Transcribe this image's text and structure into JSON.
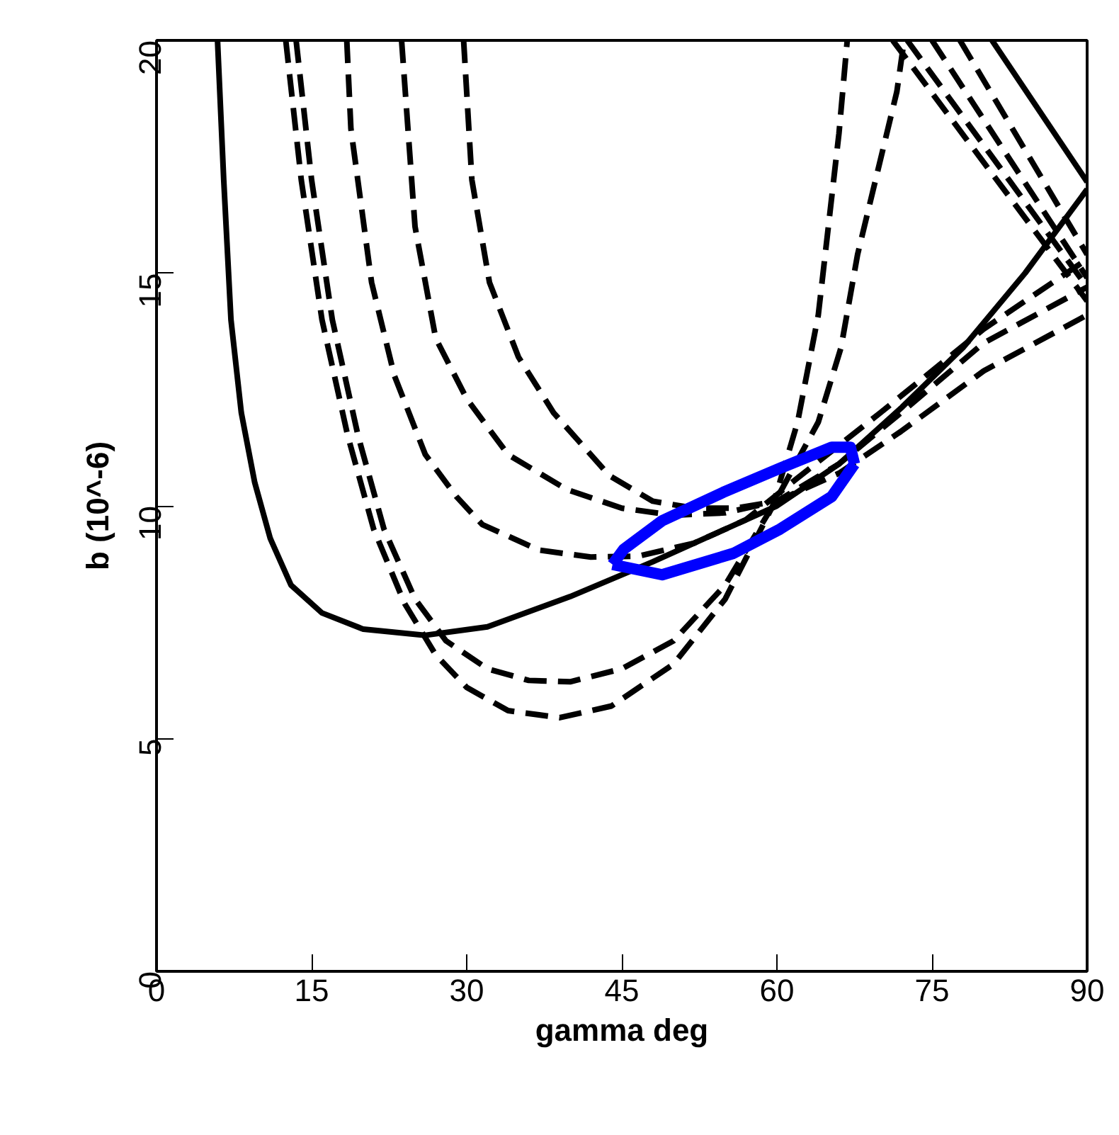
{
  "chart_data": {
    "type": "line",
    "xlabel": "gamma deg",
    "ylabel": "b (10^-6)",
    "xlim": [
      0,
      90
    ],
    "ylim": [
      0,
      20
    ],
    "xticks": [
      0,
      15,
      30,
      45,
      60,
      75,
      90
    ],
    "yticks": [
      0,
      5,
      10,
      15,
      20
    ],
    "grid": false,
    "marker": "none",
    "series": [
      {
        "color": "#000000",
        "line_style": "solid",
        "x": [
          5.9,
          6.5,
          7.2,
          8.2,
          9.5,
          11,
          13,
          16,
          20,
          26,
          32,
          40,
          48,
          55,
          60,
          66,
          72,
          78,
          84,
          90
        ],
        "values": [
          20,
          17,
          14,
          12,
          10.5,
          9.3,
          8.3,
          7.7,
          7.35,
          7.22,
          7.4,
          8.05,
          8.8,
          9.5,
          10,
          10.9,
          12.1,
          13.4,
          15,
          16.8
        ]
      },
      {
        "color": "#000000",
        "line_style": "dashed",
        "x": [
          12.5,
          14,
          16,
          18.5,
          21,
          24,
          27,
          30,
          34,
          39,
          44,
          50,
          55,
          59.6,
          62,
          64,
          66,
          66.8
        ],
        "values": [
          20,
          17,
          14,
          11.5,
          9.5,
          7.9,
          6.8,
          6.1,
          5.6,
          5.45,
          5.7,
          6.6,
          8,
          10,
          11.8,
          14.1,
          18,
          20
        ]
      },
      {
        "color": "#000000",
        "line_style": "dashed",
        "x": [
          13.5,
          15,
          17,
          19.5,
          22,
          25,
          28,
          32,
          36,
          40,
          45,
          50,
          55,
          59.6,
          64,
          66.2,
          67.8,
          71.6,
          72.3
        ],
        "values": [
          20,
          17,
          14,
          11.5,
          9.5,
          8,
          7.1,
          6.5,
          6.25,
          6.22,
          6.5,
          7.1,
          8.3,
          10,
          11.8,
          13.4,
          15.4,
          18.9,
          20
        ]
      },
      {
        "color": "#000000",
        "line_style": "dashed",
        "x": [
          18.4,
          18.8,
          20.8,
          23,
          26,
          29,
          31.5,
          37,
          42,
          46.6,
          52,
          57,
          62,
          70,
          80,
          90
        ],
        "values": [
          20,
          18.1,
          14.8,
          12.8,
          11.1,
          10.2,
          9.6,
          9.05,
          8.9,
          8.92,
          9.2,
          9.7,
          10.6,
          12,
          13.8,
          15.3
        ]
      },
      {
        "color": "#000000",
        "line_style": "dashed",
        "x": [
          23.7,
          25,
          27,
          30,
          34,
          39.7,
          45,
          50,
          55,
          60,
          66,
          72,
          80,
          90
        ],
        "values": [
          20,
          16,
          13.6,
          12.3,
          11.1,
          10.35,
          9.95,
          9.8,
          9.85,
          10.1,
          10.9,
          12,
          13.5,
          14.7
        ]
      },
      {
        "color": "#000000",
        "line_style": "dashed",
        "x": [
          29.7,
          30.5,
          32.2,
          35,
          38.4,
          43.8,
          48,
          52,
          56,
          60,
          66,
          72,
          80,
          90
        ],
        "values": [
          20,
          17,
          14.8,
          13.2,
          12,
          10.65,
          10.1,
          9.95,
          9.95,
          10.1,
          10.7,
          11.6,
          12.9,
          14.1
        ]
      },
      {
        "color": "#000000",
        "line_style": "solid",
        "x": [
          80.8,
          90
        ],
        "values": [
          20,
          16.96
        ]
      },
      {
        "color": "#000000",
        "line_style": "dashed",
        "x": [
          77.7,
          90
        ],
        "values": [
          20,
          15.4
        ]
      },
      {
        "color": "#000000",
        "line_style": "dashed",
        "x": [
          75,
          90
        ],
        "values": [
          20,
          14.9
        ]
      },
      {
        "color": "#000000",
        "line_style": "dashed",
        "x": [
          72.6,
          90
        ],
        "values": [
          20,
          14.7
        ]
      },
      {
        "color": "#000000",
        "line_style": "dashed",
        "x": [
          71.2,
          90
        ],
        "values": [
          20,
          14.4
        ]
      },
      {
        "color": "#0000ff",
        "line_style": "solid",
        "x": [
          44.1,
          48.9,
          55.8,
          60.3,
          65.3,
          67.5
        ],
        "values": [
          8.74,
          8.52,
          8.98,
          9.5,
          10.2,
          10.9
        ]
      },
      {
        "color": "#0000ff",
        "line_style": "solid",
        "x": [
          44.1,
          45.2,
          48.9,
          54.8,
          60.3,
          65.3,
          67.1,
          67.5
        ],
        "values": [
          8.74,
          9.07,
          9.68,
          10.29,
          10.81,
          11.26,
          11.26,
          10.9
        ]
      }
    ]
  }
}
